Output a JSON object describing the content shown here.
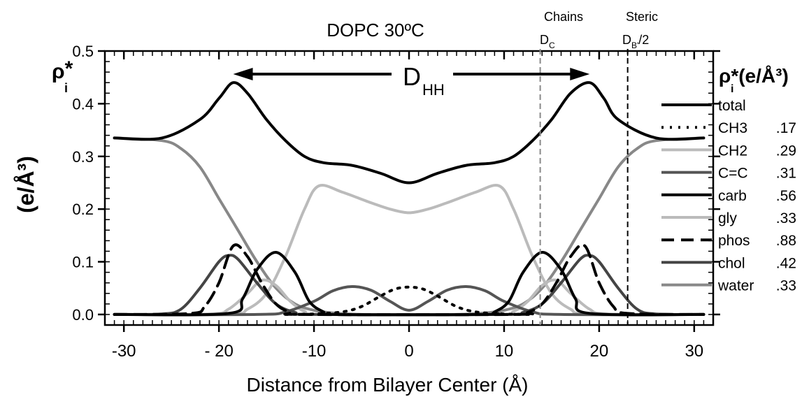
{
  "chart_data": {
    "type": "line",
    "title": "DOPC 30ºC",
    "xlabel": "Distance from Bilayer Center (Å)",
    "ylabel_left_top": "ρ",
    "ylabel_left_top_sup": "*",
    "ylabel_left_top_sub": "i",
    "ylabel_left_units": "(e/Å³)",
    "ylabel_right_rho": "ρ",
    "ylabel_right_sub": "i",
    "ylabel_right_units": "*(e/Å³)",
    "xlim": [
      -32,
      32
    ],
    "ylim": [
      -0.02,
      0.5
    ],
    "xticks": [
      -30,
      -20,
      -10,
      0,
      10,
      20,
      30
    ],
    "xtick_labels": [
      "-30",
      "- 20",
      "-10",
      "0",
      "10",
      "20",
      "30"
    ],
    "yticks": [
      0.0,
      0.1,
      0.2,
      0.3,
      0.4,
      0.5
    ],
    "ytick_labels": [
      "0.0",
      "0.1",
      "0.2",
      "0.3",
      "0.4",
      "0.5"
    ],
    "grid": false,
    "legend_placement": "right",
    "annotations": {
      "dhh_main": "D",
      "dhh_sub": "HH",
      "chains_label": "Chains",
      "chains_d": "D",
      "chains_sub": "C",
      "chains_x": 13.8,
      "steric_label": "Steric",
      "steric_d": "D",
      "steric_sub": "B'",
      "steric_suffix": "/2",
      "steric_x": 23.0,
      "dhh_arrow_from": -18.5,
      "dhh_arrow_to": 19.0
    },
    "series": [
      {
        "name": "total",
        "value_label": "",
        "color": "#000000",
        "dash": "solid",
        "x": [
          -31,
          -26,
          -22,
          -20,
          -18.5,
          -17,
          -15,
          -13,
          -11,
          -9,
          -6,
          -3,
          0,
          3,
          6,
          9,
          11,
          13,
          15,
          17,
          19,
          20.5,
          22,
          26,
          31
        ],
        "y": [
          0.335,
          0.335,
          0.37,
          0.41,
          0.44,
          0.42,
          0.37,
          0.33,
          0.3,
          0.288,
          0.283,
          0.268,
          0.25,
          0.268,
          0.283,
          0.288,
          0.3,
          0.33,
          0.37,
          0.42,
          0.44,
          0.41,
          0.37,
          0.335,
          0.335
        ]
      },
      {
        "name": "CH3",
        "value_label": ".17",
        "color": "#000000",
        "dash": "dotted",
        "x": [
          -13,
          -10,
          -7,
          -5,
          -3,
          -1.5,
          0,
          1.5,
          3,
          5,
          7,
          10,
          13
        ],
        "y": [
          0.0,
          0.001,
          0.005,
          0.015,
          0.035,
          0.048,
          0.052,
          0.048,
          0.035,
          0.015,
          0.005,
          0.001,
          0.0
        ]
      },
      {
        "name": "CH2",
        "value_label": ".29",
        "color": "#bbbbbb",
        "dash": "solid",
        "x": [
          -31,
          -19,
          -17,
          -15,
          -13,
          -11,
          -9.5,
          -7,
          -4,
          -2,
          0,
          2,
          4,
          7,
          9.5,
          11,
          13,
          15,
          17,
          19,
          31
        ],
        "y": [
          0.0,
          0.001,
          0.01,
          0.04,
          0.11,
          0.2,
          0.244,
          0.232,
          0.212,
          0.2,
          0.193,
          0.2,
          0.212,
          0.232,
          0.244,
          0.2,
          0.11,
          0.04,
          0.01,
          0.001,
          0.0
        ]
      },
      {
        "name": "C=C",
        "value_label": ".31",
        "color": "#555555",
        "dash": "solid",
        "x": [
          -31,
          -16,
          -13,
          -10,
          -8,
          -6,
          -4,
          -2,
          0,
          2,
          4,
          6,
          8,
          10,
          13,
          16,
          31
        ],
        "y": [
          0.0,
          0.0,
          0.005,
          0.025,
          0.045,
          0.053,
          0.046,
          0.025,
          0.008,
          0.025,
          0.046,
          0.053,
          0.045,
          0.025,
          0.005,
          0.0,
          0.0
        ]
      },
      {
        "name": "carb",
        "value_label": ".56",
        "color": "#000000",
        "dash": "solid",
        "x": [
          -31,
          -19,
          -17.5,
          -16,
          -14,
          -12,
          -10.5,
          -9,
          -8,
          8,
          9,
          10.5,
          12,
          14,
          16,
          17.5,
          19,
          31
        ],
        "y": [
          0.0,
          0.002,
          0.03,
          0.085,
          0.118,
          0.08,
          0.025,
          0.005,
          0.0,
          0.0,
          0.005,
          0.025,
          0.08,
          0.118,
          0.085,
          0.03,
          0.002,
          0.0
        ]
      },
      {
        "name": "gly",
        "value_label": ".33",
        "color": "#bbbbbb",
        "dash": "solid",
        "x": [
          -31,
          -21,
          -19,
          -17,
          -15.5,
          -14,
          -12.5,
          -11,
          -9,
          9,
          11,
          12.5,
          14,
          15.5,
          17,
          19,
          21,
          31
        ],
        "y": [
          0.0,
          0.001,
          0.01,
          0.04,
          0.065,
          0.055,
          0.025,
          0.006,
          0.0,
          0.0,
          0.006,
          0.025,
          0.055,
          0.065,
          0.04,
          0.01,
          0.001,
          0.0
        ]
      },
      {
        "name": "phos",
        "value_label": ".88",
        "color": "#000000",
        "dash": "dashed",
        "x": [
          -31,
          -23,
          -21.5,
          -20,
          -18.5,
          -17,
          -15.5,
          -14,
          -12.5,
          -11,
          11,
          12.5,
          14,
          15.5,
          17,
          18.5,
          20,
          21.5,
          23,
          31
        ],
        "y": [
          0.0,
          0.002,
          0.015,
          0.06,
          0.13,
          0.11,
          0.06,
          0.02,
          0.004,
          0.0,
          0.0,
          0.004,
          0.02,
          0.06,
          0.11,
          0.13,
          0.06,
          0.015,
          0.002,
          0.0
        ]
      },
      {
        "name": "chol",
        "value_label": ".42",
        "color": "#444444",
        "dash": "solid",
        "x": [
          -31,
          -26,
          -24,
          -22,
          -20,
          -19,
          -18,
          -16,
          -14,
          -12,
          -10,
          10,
          12,
          14,
          16,
          18,
          19,
          20,
          22,
          24,
          26,
          31
        ],
        "y": [
          0.0,
          0.001,
          0.01,
          0.05,
          0.1,
          0.112,
          0.105,
          0.06,
          0.02,
          0.004,
          0.0,
          0.0,
          0.004,
          0.02,
          0.06,
          0.105,
          0.112,
          0.1,
          0.05,
          0.01,
          0.001,
          0.0
        ]
      },
      {
        "name": "water",
        "value_label": ".33",
        "color": "#888888",
        "dash": "solid",
        "x": [
          -31,
          -26,
          -24,
          -22,
          -20,
          -18,
          -16,
          -14,
          -12,
          -10,
          -8,
          -5,
          0,
          5,
          8,
          10,
          12,
          14,
          16,
          18,
          20,
          22,
          24,
          26,
          31
        ],
        "y": [
          0.335,
          0.33,
          0.315,
          0.28,
          0.22,
          0.16,
          0.1,
          0.05,
          0.02,
          0.008,
          0.003,
          0.0,
          0.0,
          0.0,
          0.003,
          0.008,
          0.02,
          0.05,
          0.1,
          0.16,
          0.22,
          0.28,
          0.315,
          0.33,
          0.335
        ]
      }
    ]
  }
}
